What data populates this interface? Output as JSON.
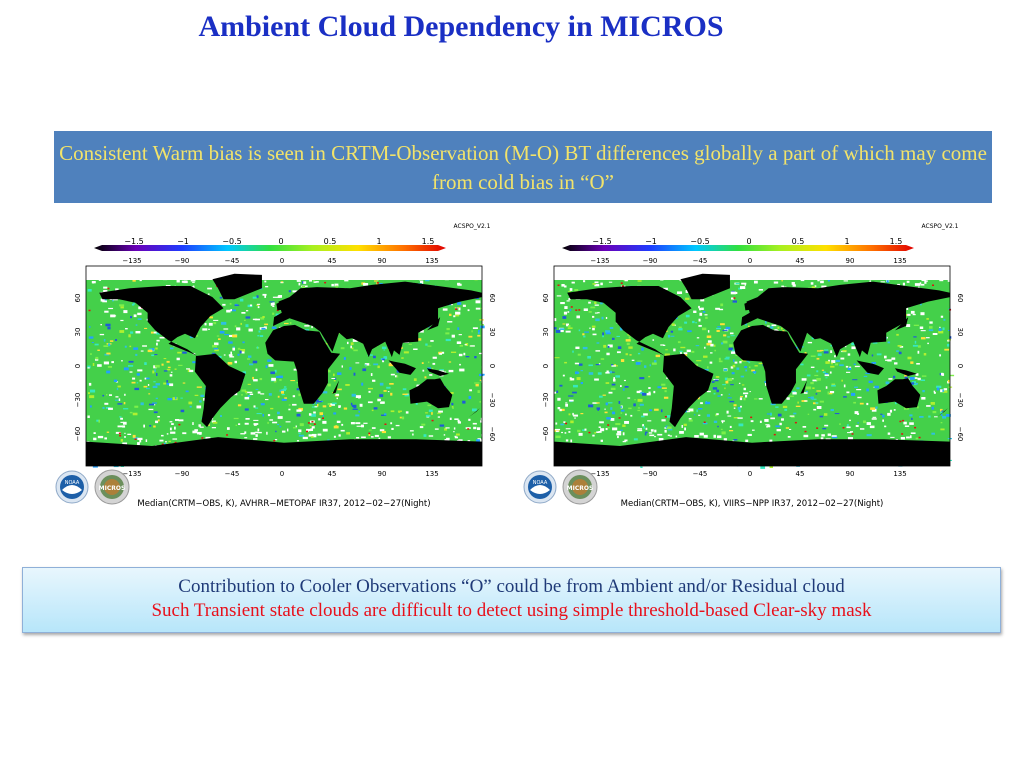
{
  "slide": {
    "title": "Ambient Cloud Dependency in MICROS",
    "banner": "Consistent Warm bias is seen in CRTM-Observation (M-O) BT differences globally a part of which may come from cold bias in “O”",
    "note": {
      "line1": "Contribution to Cooler Observations “O” could be from Ambient and/or Residual cloud",
      "line2": "Such Transient state clouds are difficult to detect using simple threshold-based Clear-sky mask"
    }
  },
  "maps": [
    {
      "version_tag": "ACSPO_V2.1",
      "colorbar_ticks": [
        "−1.5",
        "−1",
        "−0.5",
        "0",
        "0.5",
        "1",
        "1.5"
      ],
      "lon_ticks_top": [
        "−135",
        "−90",
        "−45",
        "0",
        "45",
        "90",
        "135"
      ],
      "lon_ticks_bottom": [
        "−135",
        "−90",
        "−45",
        "0",
        "45",
        "90",
        "135"
      ],
      "lat_ticks": [
        "60",
        "30",
        "0",
        "−30",
        "−60"
      ],
      "caption": "Median(CRTM−OBS, K), AVHRR−METOPAF IR37, 2012−02−27(Night)",
      "logos": [
        "NOAA",
        "MICROS"
      ]
    },
    {
      "version_tag": "ACSPO_V2.1",
      "colorbar_ticks": [
        "−1.5",
        "−1",
        "−0.5",
        "0",
        "0.5",
        "1",
        "1.5"
      ],
      "lon_ticks_top": [
        "−135",
        "−90",
        "−45",
        "0",
        "45",
        "90",
        "135"
      ],
      "lon_ticks_bottom": [
        "−135",
        "−90",
        "−45",
        "0",
        "45",
        "90",
        "135"
      ],
      "lat_ticks": [
        "60",
        "30",
        "0",
        "−30",
        "−60"
      ],
      "caption": "Median(CRTM−OBS, K), VIIRS−NPP IR37, 2012−02−27(Night)",
      "logos": [
        "NOAA",
        "MICROS"
      ]
    }
  ],
  "colors": {
    "title": "#1a2fc4",
    "banner_bg": "#4f81bd",
    "banner_text": "#f2e36a",
    "note_line1": "#1f3a78",
    "note_line2": "#e8101b",
    "land": "#000000",
    "ocean_main": "#3fd84a"
  }
}
